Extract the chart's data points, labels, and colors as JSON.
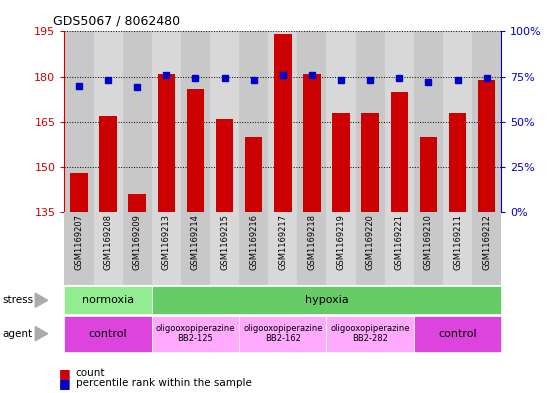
{
  "title": "GDS5067 / 8062480",
  "samples": [
    "GSM1169207",
    "GSM1169208",
    "GSM1169209",
    "GSM1169213",
    "GSM1169214",
    "GSM1169215",
    "GSM1169216",
    "GSM1169217",
    "GSM1169218",
    "GSM1169219",
    "GSM1169220",
    "GSM1169221",
    "GSM1169210",
    "GSM1169211",
    "GSM1169212"
  ],
  "counts": [
    148,
    167,
    141,
    181,
    176,
    166,
    160,
    194,
    181,
    168,
    168,
    175,
    160,
    168,
    179
  ],
  "percentiles": [
    70,
    73,
    69,
    76,
    74,
    74,
    73,
    76,
    76,
    73,
    73,
    74,
    72,
    73,
    74
  ],
  "ylim_left": [
    135,
    195
  ],
  "ylim_right": [
    0,
    100
  ],
  "yticks_left": [
    135,
    150,
    165,
    180,
    195
  ],
  "yticks_right": [
    0,
    25,
    50,
    75,
    100
  ],
  "bar_color": "#cc0000",
  "dot_color": "#0000cc",
  "bar_width": 0.6,
  "background_color": "#ffffff",
  "stress_labels": [
    {
      "text": "normoxia",
      "start": 0,
      "end": 3,
      "color": "#90ee90"
    },
    {
      "text": "hypoxia",
      "start": 3,
      "end": 15,
      "color": "#66cc66"
    }
  ],
  "agent_labels": [
    {
      "line1": "control",
      "line2": "",
      "start": 0,
      "end": 3,
      "color": "#dd44dd"
    },
    {
      "line1": "oligooxopiperazine",
      "line2": "BB2-125",
      "start": 3,
      "end": 6,
      "color": "#ffaaff"
    },
    {
      "line1": "oligooxopiperazine",
      "line2": "BB2-162",
      "start": 6,
      "end": 9,
      "color": "#ffaaff"
    },
    {
      "line1": "oligooxopiperazine",
      "line2": "BB2-282",
      "start": 9,
      "end": 12,
      "color": "#ffaaff"
    },
    {
      "line1": "control",
      "line2": "",
      "start": 12,
      "end": 15,
      "color": "#dd44dd"
    }
  ],
  "grid_color": "#000000",
  "tick_color_left": "#cc0000",
  "tick_color_right": "#0000cc",
  "col_bg_even": "#c8c8c8",
  "col_bg_odd": "#d8d8d8"
}
